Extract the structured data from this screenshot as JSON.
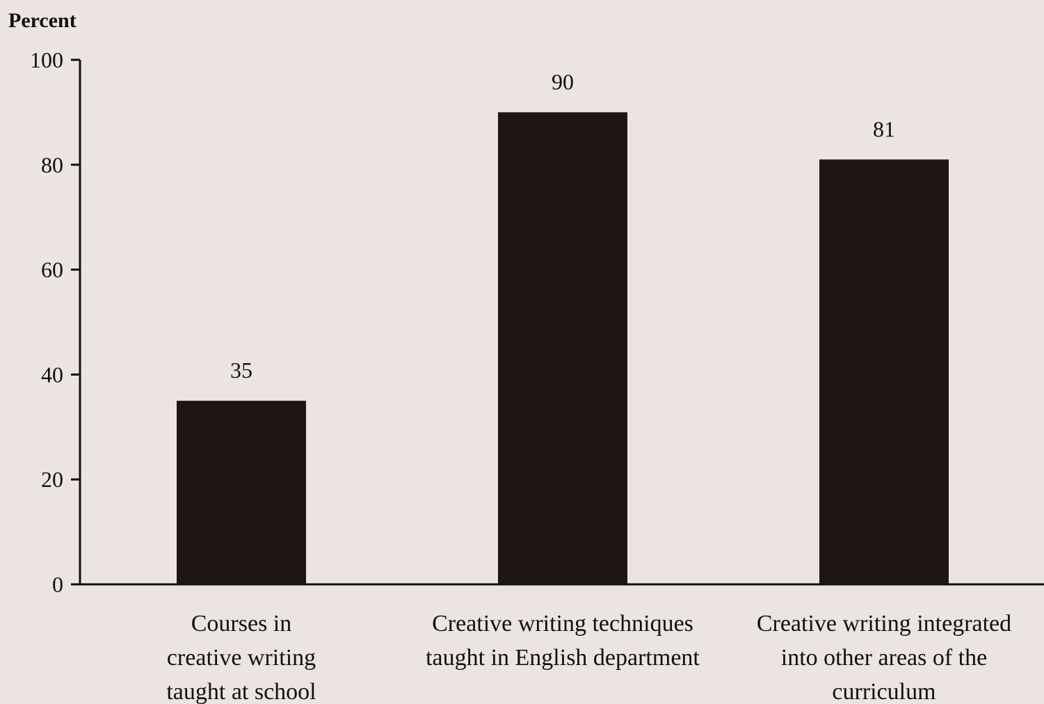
{
  "chart_data": {
    "type": "bar",
    "ylabel": "Percent",
    "xlabel": "",
    "ylim": [
      0,
      100
    ],
    "yticks": [
      0,
      20,
      40,
      60,
      80,
      100
    ],
    "grid": false,
    "legend": "none",
    "bar_color": "#1e1515",
    "categories": [
      [
        "Courses in",
        "creative writing",
        "taught at school"
      ],
      [
        "Creative writing techniques",
        "taught in English department"
      ],
      [
        "Creative writing integrated",
        "into other areas of the",
        "curriculum"
      ]
    ],
    "values": [
      35,
      90,
      81
    ],
    "value_labels": [
      "35",
      "90",
      "81"
    ]
  }
}
